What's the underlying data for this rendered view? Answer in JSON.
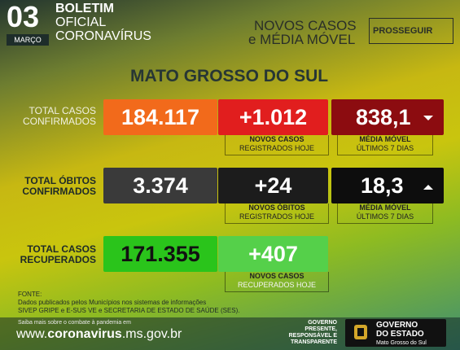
{
  "header": {
    "day": "03",
    "month": "MARÇO",
    "title": [
      "BOLETIM",
      "OFICIAL",
      "CORONAVÍRUS"
    ],
    "section": [
      "NOVOS CASOS",
      "e MÉDIA MÓVEL"
    ],
    "button": "PROSSEGUIR"
  },
  "region": "MATO GROSSO DO SUL",
  "rows": [
    {
      "label": [
        "TOTAL CASOS",
        "CONFIRMADOS"
      ],
      "total": "184.117",
      "new": "+1.012",
      "new_caption": [
        "NOVOS CASOS",
        "REGISTRADOS HOJE"
      ],
      "average": "838,1",
      "average_caption": [
        "MÉDIA MÓVEL",
        "ÚLTIMOS 7 DIAS"
      ]
    },
    {
      "label": [
        "TOTAL ÓBITOS",
        "CONFIRMADOS"
      ],
      "total": "3.374",
      "new": "+24",
      "new_caption": [
        "NOVOS ÓBITOS",
        "REGISTRADOS HOJE"
      ],
      "average": "18,3",
      "average_caption": [
        "MÉDIA MÓVEL",
        "ÚLTIMOS 7 DIAS"
      ]
    },
    {
      "label": [
        "TOTAL CASOS",
        "RECUPERADOS"
      ],
      "total": "171.355",
      "new": "+407",
      "new_caption": [
        "NOVOS CASOS",
        "RECUPERADOS HOJE"
      ]
    }
  ],
  "source": [
    "FONTE:",
    "Dados publicados pelos Municípios nos sistemas de informações",
    "SIVEP GRIPE e E-SUS VE e SECRETARIA DE ESTADO DE SAÚDE (SES)."
  ],
  "footer": {
    "note": "Saiba mais sobre o combate à pandemia em",
    "url": [
      "www.",
      "coronavirus",
      ".ms.gov.br"
    ],
    "motto": [
      "GOVERNO",
      "PRESENTE,",
      "RESPONSÁVEL E",
      "TRANSPARENTE"
    ],
    "government": [
      "GOVERNO",
      "DO ESTADO",
      "Mato Grosso do Sul"
    ]
  }
}
